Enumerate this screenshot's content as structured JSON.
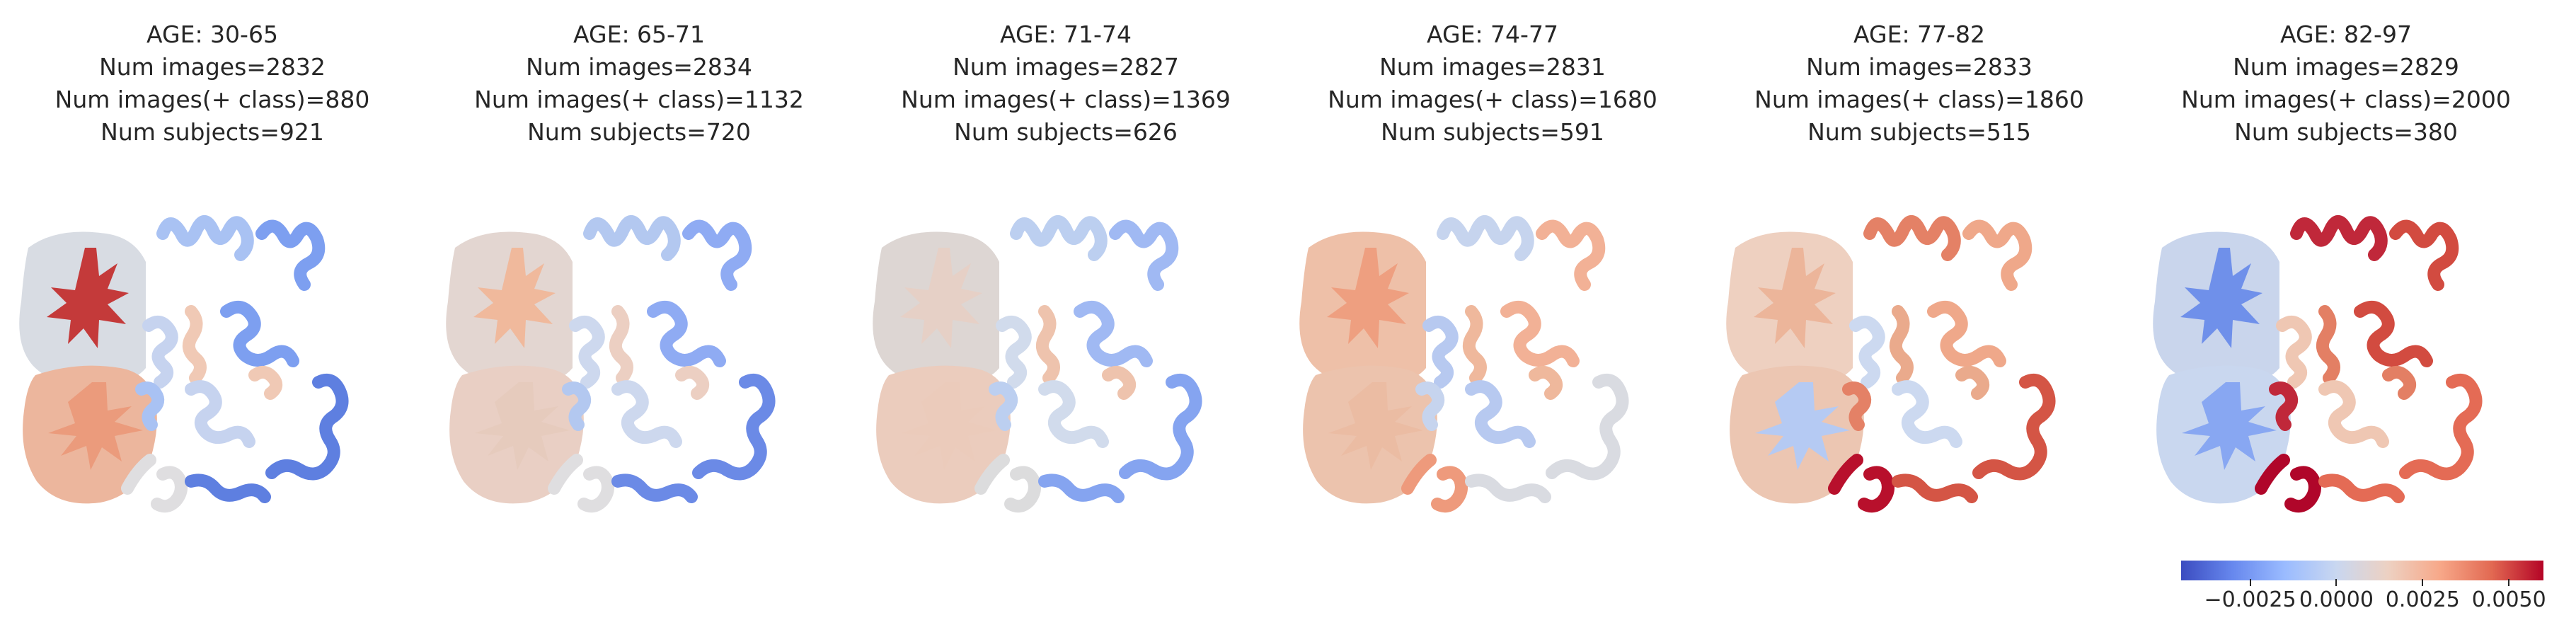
{
  "panels": [
    {
      "title": [
        "AGE: 30-65",
        "Num images=2832",
        "Num images(+ class)=880",
        "Num subjects=921"
      ],
      "colors": {
        "upper_lobe": "#d8dce3",
        "upper_core": "#c43a3a",
        "lower_lobe": "#ecb69d",
        "lower_core": "#eb9b7c",
        "gyrus_a": "#a9c2f3",
        "gyrus_b": "#7d9ff0",
        "gyrus_c": "#5e7fe0",
        "gyrus_d": "#c6d3ef",
        "gyrus_e": "#f0c9b5",
        "gyrus_f": "#dfdee0"
      }
    },
    {
      "title": [
        "AGE: 65-71",
        "Num images=2834",
        "Num images(+ class)=1132",
        "Num subjects=720"
      ],
      "colors": {
        "upper_lobe": "#e3d6d1",
        "upper_core": "#f0b99c",
        "lower_lobe": "#e9cfc4",
        "lower_core": "#e6cbbd",
        "gyrus_a": "#b3c8f0",
        "gyrus_b": "#8fabf3",
        "gyrus_c": "#6b8ae6",
        "gyrus_d": "#cdd8ee",
        "gyrus_e": "#eccfc2",
        "gyrus_f": "#dfdee0"
      }
    },
    {
      "title": [
        "AGE: 71-74",
        "Num images=2827",
        "Num images(+ class)=1369",
        "Num subjects=626"
      ],
      "colors": {
        "upper_lobe": "#ddd6d3",
        "upper_core": "#e6d0c6",
        "lower_lobe": "#ebccbd",
        "lower_core": "#ebcbbb",
        "gyrus_a": "#bccff0",
        "gyrus_b": "#a0b9f3",
        "gyrus_c": "#85a4f0",
        "gyrus_d": "#d1dbec",
        "gyrus_e": "#eec3ad",
        "gyrus_f": "#dcdcdd"
      }
    },
    {
      "title": [
        "AGE: 74-77",
        "Num images=2831",
        "Num images(+ class)=1680",
        "Num subjects=591"
      ],
      "colors": {
        "upper_lobe": "#eec0a8",
        "upper_core": "#ee9f80",
        "lower_lobe": "#ecc3ad",
        "lower_core": "#ebbca3",
        "gyrus_a": "#c6d4ee",
        "gyrus_b": "#f2b196",
        "gyrus_c": "#d9dbe1",
        "gyrus_d": "#b7c9f0",
        "gyrus_e": "#efb89c",
        "gyrus_f": "#ee9a7c"
      }
    },
    {
      "title": [
        "AGE: 77-82",
        "Num images=2833",
        "Num images(+ class)=1860",
        "Num subjects=515"
      ],
      "colors": {
        "upper_lobe": "#eed0c0",
        "upper_core": "#ecb59a",
        "lower_lobe": "#ecc6b2",
        "lower_core": "#b5caf3",
        "gyrus_a": "#e48166",
        "gyrus_b": "#efa88a",
        "gyrus_c": "#d45545",
        "gyrus_d": "#ccd9f0",
        "gyrus_e": "#eaaa8c",
        "gyrus_f": "#b8102c"
      }
    },
    {
      "title": [
        "AGE: 82-97",
        "Num images=2829",
        "Num images(+ class)=2000",
        "Num subjects=380"
      ],
      "colors": {
        "upper_lobe": "#c9d5ec",
        "upper_core": "#6f90ea",
        "lower_lobe": "#c9d7ef",
        "lower_core": "#88a7f2",
        "gyrus_a": "#c0283a",
        "gyrus_b": "#d24b40",
        "gyrus_c": "#e46b55",
        "gyrus_d": "#efc7b3",
        "gyrus_e": "#e37f64",
        "gyrus_f": "#b0062a"
      }
    }
  ],
  "colorbar": {
    "colormap": "coolwarm",
    "min": -0.0045,
    "max": 0.006,
    "stops": [
      "#3b4cc0",
      "#6788ee",
      "#9abbff",
      "#c9d7f0",
      "#edd1c2",
      "#f7a889",
      "#e26952",
      "#b40426"
    ],
    "ticks": [
      {
        "value": -0.0025,
        "label": "−0.0025"
      },
      {
        "value": 0.0,
        "label": "0.0000"
      },
      {
        "value": 0.0025,
        "label": "0.0025"
      },
      {
        "value": 0.005,
        "label": "0.0050"
      }
    ]
  }
}
